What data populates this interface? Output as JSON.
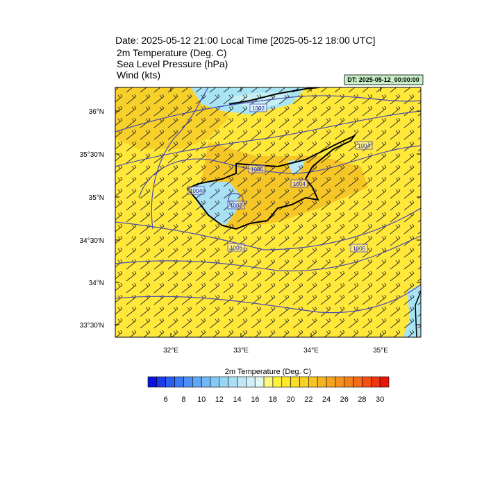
{
  "header": {
    "date": "Date: 2025-05-12  21:00 Local Time [2025-05-12  18:00 UTC]",
    "fields": [
      "2m Temperature (Deg. C)",
      "Sea Level Pressure   (hPa)",
      "Wind   (kts)"
    ],
    "dt": "DT: 2025-05-12_00:00:00"
  },
  "map": {
    "lat_labels": [
      "36°N",
      "35°30'N",
      "35°N",
      "34°30'N",
      "34°N",
      "33°30'N"
    ],
    "lon_labels": [
      "32°E",
      "33°E",
      "34°E",
      "35°E"
    ],
    "isobar_labels": [
      "1002",
      "1004",
      "1006",
      "1004",
      "1002",
      "1004",
      "1006",
      "1006"
    ]
  },
  "colorbar": {
    "title": "2m Temperature (Deg. C)",
    "colors": [
      "#0a14d8",
      "#1c3ce6",
      "#2c5cf0",
      "#3c78f4",
      "#4c90f6",
      "#5ea6f6",
      "#70b8f6",
      "#84c8f6",
      "#98d6f6",
      "#acdff6",
      "#bfe8f6",
      "#d0eff6",
      "#e2f6f4",
      "#fafa80",
      "#fff23c",
      "#ffe82a",
      "#fcdc28",
      "#f8d026",
      "#f6c424",
      "#f4b422",
      "#f4a41e",
      "#f4921c",
      "#f4801a",
      "#f46a16",
      "#f45012",
      "#f0340e",
      "#e8140a"
    ],
    "labels": [
      "6",
      "8",
      "10",
      "12",
      "14",
      "16",
      "18",
      "20",
      "22",
      "24",
      "26",
      "28",
      "30"
    ]
  }
}
